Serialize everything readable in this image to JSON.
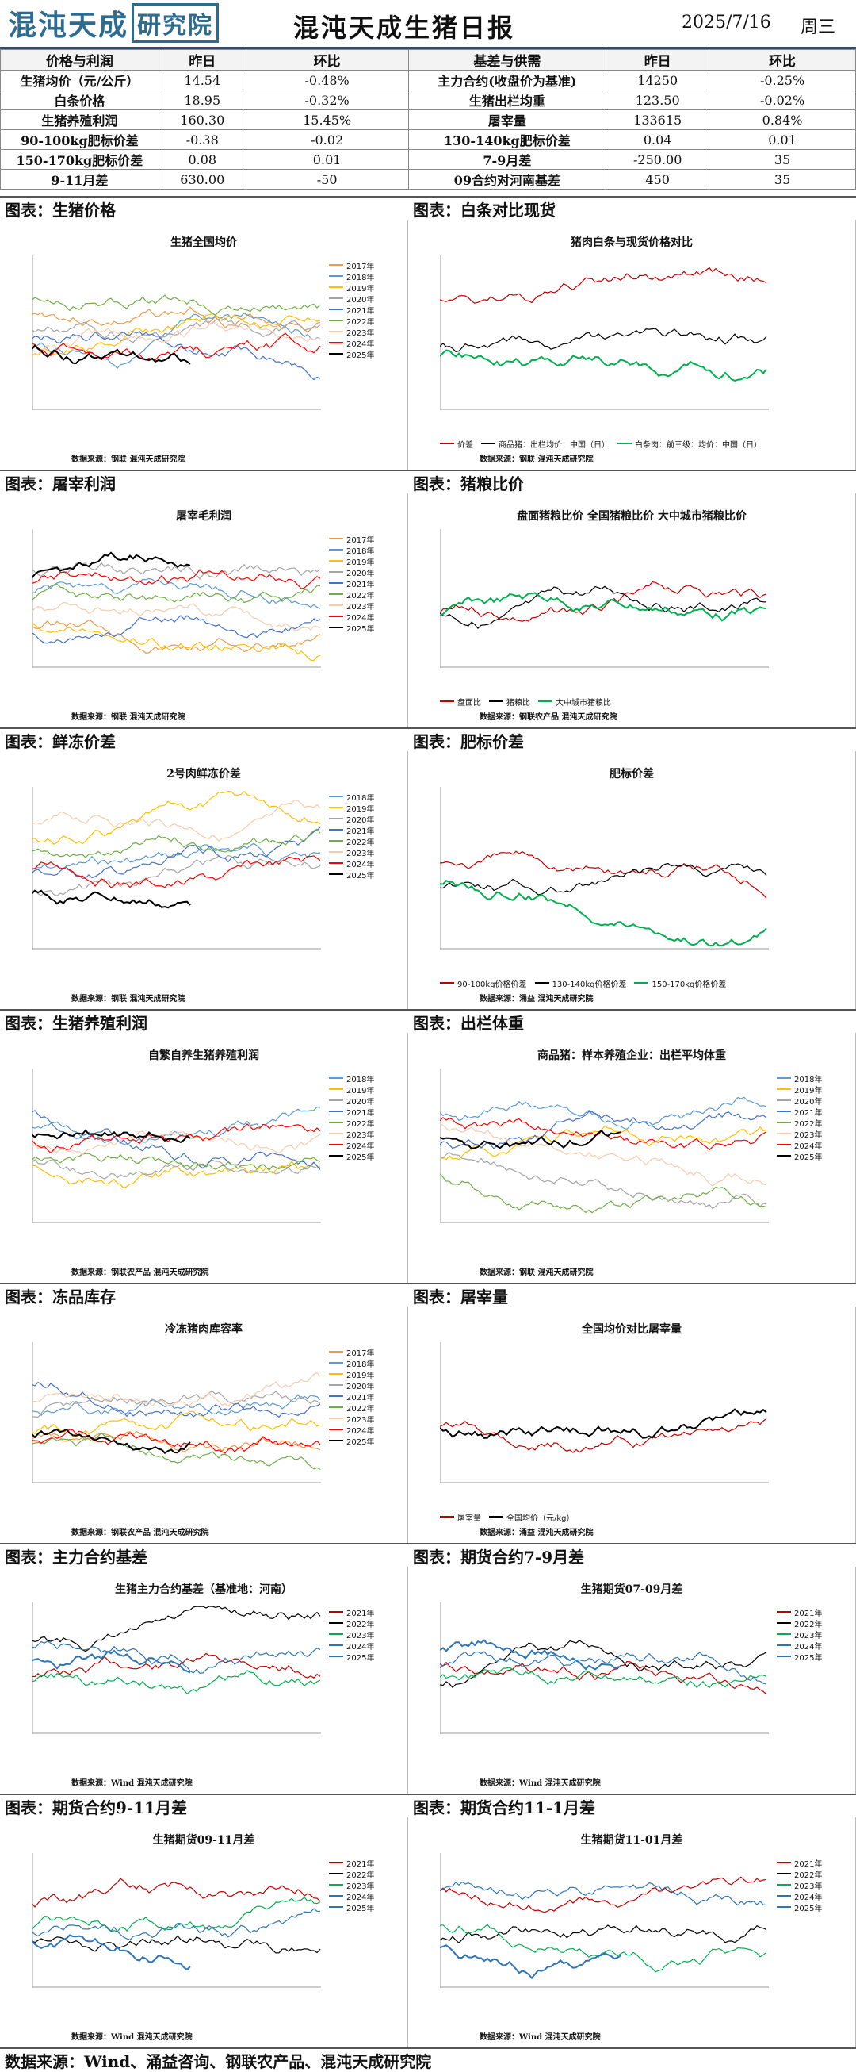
{
  "header": {
    "logo_text": "混沌天成",
    "logo_box": "研究院",
    "title": "混沌天成生猪日报",
    "date": "2025/7/16",
    "weekday": "周三"
  },
  "summary": {
    "headers": [
      "价格与利润",
      "昨日",
      "环比",
      "基差与供需",
      "昨日",
      "环比"
    ],
    "rows": [
      [
        "生猪均价（元/公斤）",
        "14.54",
        "-0.48%",
        "主力合约(收盘价为基准)",
        "14250",
        "-0.25%"
      ],
      [
        "白条价格",
        "18.95",
        "-0.32%",
        "生猪出栏均重",
        "123.50",
        "-0.02%"
      ],
      [
        "生猪养殖利润",
        "160.30",
        "15.45%",
        "屠宰量",
        "133615",
        "0.84%"
      ],
      [
        "90-100kg肥标价差",
        "-0.38",
        "-0.02",
        "130-140kg肥标价差",
        "0.04",
        "0.01"
      ],
      [
        "150-170kg肥标价差",
        "0.08",
        "0.01",
        "7-9月差",
        "-250.00",
        "35"
      ],
      [
        "9-11月差",
        "630.00",
        "-50",
        "09合约对河南基差",
        "450",
        "35"
      ]
    ]
  },
  "sections": [
    {
      "left": "图表：生猪价格",
      "right": "图表：白条对比现货"
    },
    {
      "left": "图表：屠宰利润",
      "right": "图表：猪粮比价"
    },
    {
      "left": "图表：鲜冻价差",
      "right": "图表：肥标价差"
    },
    {
      "left": "图表：生猪养殖利润",
      "right": "图表：出栏体重"
    },
    {
      "left": "图表：冻品库存",
      "right": "图表：屠宰量"
    },
    {
      "left": "图表：主力合约基差",
      "right": "图表：期货合约7-9月差"
    },
    {
      "left": "图表：期货合约9-11月差",
      "right": "图表：期货合约11-1月差"
    }
  ],
  "charts": [
    {
      "title": "生猪全国均价",
      "source": "数据来源：钢联  混沌天成研究院",
      "legend": [
        "2017年",
        "2018年",
        "2019年",
        "2020年",
        "2021年",
        "2022年",
        "2023年",
        "2024年",
        "2025年"
      ]
    },
    {
      "title": "猪肉白条与现货价格对比",
      "source": "数据来源：钢联  混沌天成研究院",
      "legend": [
        "价差",
        "商品猪：出栏均价：中国（日）",
        "白条肉：前三级：均价：中国（日）"
      ]
    },
    {
      "title": "屠宰毛利润",
      "source": "数据来源：钢联  混沌天成研究院",
      "legend": [
        "2017年",
        "2018年",
        "2019年",
        "2020年",
        "2021年",
        "2022年",
        "2023年",
        "2024年",
        "2025年"
      ]
    },
    {
      "title": "盘面猪粮比价  全国猪粮比价  大中城市猪粮比价",
      "source": "数据来源：钢联农产品  混沌天成研究院",
      "legend": [
        "盘面比",
        "猪粮比",
        "大中城市猪粮比"
      ]
    },
    {
      "title": "2号肉鲜冻价差",
      "source": "数据来源：钢联  混沌天成研究院",
      "legend": [
        "2018年",
        "2019年",
        "2020年",
        "2021年",
        "2022年",
        "2023年",
        "2024年",
        "2025年"
      ]
    },
    {
      "title": "肥标价差",
      "source": "数据来源：涌益  混沌天成研究院",
      "legend": [
        "90-100kg价格价差",
        "130-140kg价格价差",
        "150-170kg价格价差"
      ]
    },
    {
      "title": "自繁自养生猪养殖利润",
      "source": "数据来源：钢联农产品  混沌天成研究院",
      "legend": [
        "2018年",
        "2019年",
        "2020年",
        "2021年",
        "2022年",
        "2023年",
        "2024年",
        "2025年"
      ]
    },
    {
      "title": "商品猪：样本养殖企业：出栏平均体重",
      "source": "数据来源：钢联  混沌天成研究院",
      "legend": [
        "2018年",
        "2019年",
        "2020年",
        "2021年",
        "2022年",
        "2023年",
        "2024年",
        "2025年"
      ]
    },
    {
      "title": "冷冻猪肉库容率",
      "source": "数据来源：钢联农产品  混沌天成研究院",
      "legend": [
        "2017年",
        "2018年",
        "2019年",
        "2020年",
        "2021年",
        "2022年",
        "2023年",
        "2024年",
        "2025年"
      ]
    },
    {
      "title": "全国均价对比屠宰量",
      "source": "数据来源：涌益  混沌天成研究院",
      "legend": [
        "屠宰量",
        "全国均价（元/kg）"
      ]
    },
    {
      "title": "生猪主力合约基差（基准地：河南）",
      "source": "数据来源：Wind  混沌天成研究院",
      "legend": [
        "2021年",
        "2022年",
        "2023年",
        "2024年",
        "2025年"
      ]
    },
    {
      "title": "生猪期货07-09月差",
      "source": "数据来源：Wind  混沌天成研究院",
      "legend": [
        "2021年",
        "2022年",
        "2023年",
        "2024年",
        "2025年"
      ]
    },
    {
      "title": "生猪期货09-11月差",
      "source": "数据来源：Wind  混沌天成研究院",
      "legend": [
        "2021年",
        "2022年",
        "2023年",
        "2024年",
        "2025年"
      ]
    },
    {
      "title": "生猪期货11-01月差",
      "source": "数据来源：Wind  混沌天成研究院",
      "legend": [
        "2021年",
        "2022年",
        "2023年",
        "2024年",
        "2025年"
      ]
    }
  ],
  "footer": "数据来源：Wind、涌益咨询、钢联农产品、混沌天成研究院",
  "colors": {
    "y2017": "#ef9a47",
    "y2018": "#5b9bd5",
    "y2019": "#ffc000",
    "y2020": "#a5a5a5",
    "y2021": "#4472c4",
    "y2022": "#70ad47",
    "y2023": "#f8cbad",
    "y2024": "#ff0000",
    "y2025": "#000000",
    "accent": "#2f4f7a"
  }
}
